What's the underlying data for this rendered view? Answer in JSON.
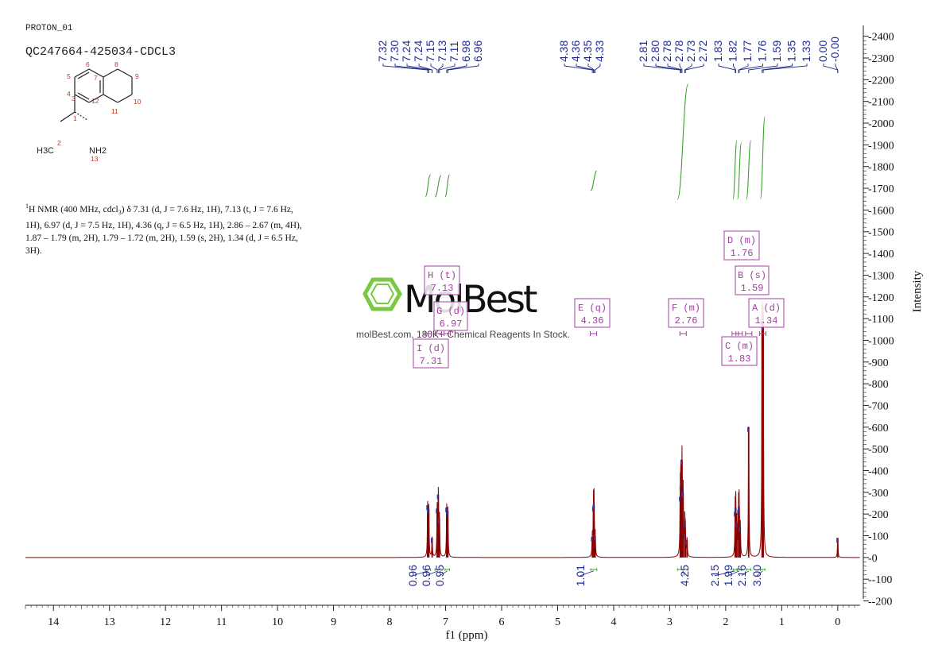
{
  "header": {
    "experiment": "PROTON_01",
    "sample": "QC247664-425034-CDCL3"
  },
  "nmr_text": {
    "lead": "H NMR (400 MHz, cdcl",
    "body": ") δ 7.31 (d, J = 7.6 Hz, 1H), 7.13 (t, J = 7.6 Hz, 1H), 6.97 (d, J = 7.5 Hz, 1H), 4.36 (q, J = 6.5 Hz, 1H), 2.86 – 2.67 (m, 4H), 1.87 – 1.79 (m, 2H), 1.79 – 1.72 (m, 2H), 1.59 (s, 2H), 1.34 (d, J = 6.5 Hz, 3H)."
  },
  "structure": {
    "atom_labels": [
      "1",
      "2",
      "3",
      "4",
      "5",
      "6",
      "7",
      "8",
      "9",
      "10",
      "11",
      "12",
      "13"
    ],
    "group_labels": {
      "methyl": "H3C",
      "amine": "NH2"
    }
  },
  "watermark": {
    "brand": "MolBest",
    "tagline": "molBest.com, 180K+ Chemical Reagents In Stock."
  },
  "chart_data": {
    "type": "line",
    "xlabel": "f1 (ppm)",
    "ylabel": "Intensity",
    "xlim": [
      14.5,
      -0.4
    ],
    "ylim": [
      -220,
      2450
    ],
    "x_ticks": [
      14,
      13,
      12,
      11,
      10,
      9,
      8,
      7,
      6,
      5,
      4,
      3,
      2,
      1,
      0
    ],
    "y_ticks": [
      -200,
      -100,
      0,
      100,
      200,
      300,
      400,
      500,
      600,
      700,
      800,
      900,
      1000,
      1100,
      1200,
      1300,
      1400,
      1500,
      1600,
      1700,
      1800,
      1900,
      2000,
      2100,
      2200,
      2300,
      2400
    ],
    "peak_labels": [
      "7.32",
      "7.30",
      "7.24",
      "7.24",
      "7.15",
      "7.13",
      "7.11",
      "6.98",
      "6.96",
      "4.38",
      "4.36",
      "4.35",
      "4.33",
      "2.81",
      "2.80",
      "2.78",
      "2.78",
      "2.73",
      "2.72",
      "1.83",
      "1.82",
      "1.77",
      "1.76",
      "1.59",
      "1.35",
      "1.33",
      "0.00",
      "-0.00"
    ],
    "peaks": [
      {
        "ppm": 7.32,
        "height": 240
      },
      {
        "ppm": 7.3,
        "height": 225
      },
      {
        "ppm": 7.24,
        "height": 90
      },
      {
        "ppm": 7.15,
        "height": 225
      },
      {
        "ppm": 7.13,
        "height": 290
      },
      {
        "ppm": 7.11,
        "height": 180
      },
      {
        "ppm": 6.98,
        "height": 230
      },
      {
        "ppm": 6.96,
        "height": 215
      },
      {
        "ppm": 4.38,
        "height": 95
      },
      {
        "ppm": 4.36,
        "height": 235
      },
      {
        "ppm": 4.35,
        "height": 245
      },
      {
        "ppm": 4.33,
        "height": 100
      },
      {
        "ppm": 2.81,
        "height": 280
      },
      {
        "ppm": 2.8,
        "height": 330
      },
      {
        "ppm": 2.78,
        "height": 450
      },
      {
        "ppm": 2.76,
        "height": 300
      },
      {
        "ppm": 2.73,
        "height": 160
      },
      {
        "ppm": 2.72,
        "height": 110
      },
      {
        "ppm": 2.69,
        "height": 80
      },
      {
        "ppm": 1.83,
        "height": 210
      },
      {
        "ppm": 1.82,
        "height": 230
      },
      {
        "ppm": 1.8,
        "height": 160
      },
      {
        "ppm": 1.77,
        "height": 220
      },
      {
        "ppm": 1.76,
        "height": 235
      },
      {
        "ppm": 1.74,
        "height": 140
      },
      {
        "ppm": 1.59,
        "height": 600
      },
      {
        "ppm": 1.35,
        "height": 1090
      },
      {
        "ppm": 1.33,
        "height": 1070
      },
      {
        "ppm": 0.0,
        "height": 90
      }
    ],
    "multiplets": [
      {
        "label": "I (d)",
        "value": "7.31"
      },
      {
        "label": "H (t)",
        "value": "7.13"
      },
      {
        "label": "G (d)",
        "value": "6.97"
      },
      {
        "label": "E (q)",
        "value": "4.36"
      },
      {
        "label": "F (m)",
        "value": "2.76"
      },
      {
        "label": "D (m)",
        "value": "1.76"
      },
      {
        "label": "C (m)",
        "value": "1.83"
      },
      {
        "label": "B (s)",
        "value": "1.59"
      },
      {
        "label": "A (d)",
        "value": "1.34"
      }
    ],
    "integrals": [
      {
        "from": 7.36,
        "to": 7.27,
        "value": "0.96"
      },
      {
        "from": 7.19,
        "to": 7.08,
        "value": "0.96"
      },
      {
        "from": 7.01,
        "to": 6.93,
        "value": "0.95"
      },
      {
        "from": 4.41,
        "to": 4.3,
        "value": "1.01"
      },
      {
        "from": 2.86,
        "to": 2.67,
        "value": "4.25"
      },
      {
        "from": 1.87,
        "to": 1.8,
        "value": "2.15"
      },
      {
        "from": 1.79,
        "to": 1.72,
        "value": "1.99"
      },
      {
        "from": 1.63,
        "to": 1.55,
        "value": "2.16"
      },
      {
        "from": 1.38,
        "to": 1.3,
        "value": "3.00"
      }
    ],
    "colors": {
      "spectrum": "#8b0000",
      "peak_label": "#1f2a8c",
      "integral_curve": "#3aa02f",
      "multiplet_box": "#a040a0",
      "integral_label": "#1f2a8c",
      "watermark": "#7ac943"
    },
    "grid": false
  }
}
